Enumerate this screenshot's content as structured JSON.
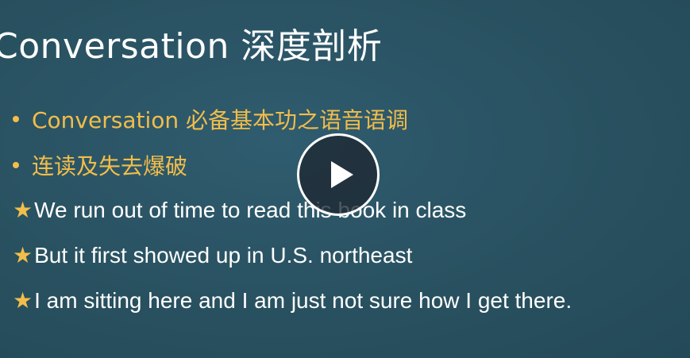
{
  "slide": {
    "title": "Conversation 深度剖析",
    "bullets": [
      "Conversation 必备基本功之语音语调",
      "连读及失去爆破"
    ],
    "star_symbol": "★",
    "examples": [
      "We run out of time to read this book in class",
      "But it first showed up in U.S. northeast",
      "I am sitting here and I am just not sure how I get there."
    ]
  },
  "player": {
    "play_icon": "play-icon"
  },
  "colors": {
    "background": "#2b5466",
    "accent": "#f2bd4a",
    "text": "#ffffff"
  }
}
